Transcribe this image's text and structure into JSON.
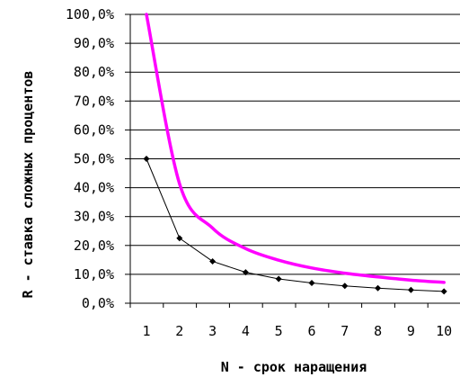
{
  "chart_data": {
    "type": "line",
    "title": "",
    "xlabel": "N - срок наращения",
    "ylabel": "R - ставка сложных процентов",
    "categories": [
      "1",
      "2",
      "3",
      "4",
      "5",
      "6",
      "7",
      "8",
      "9",
      "10"
    ],
    "y_ticks": [
      "0,0%",
      "10,0%",
      "20,0%",
      "30,0%",
      "40,0%",
      "50,0%",
      "60,0%",
      "70,0%",
      "80,0%",
      "90,0%",
      "100,0%"
    ],
    "ylim": [
      0,
      100
    ],
    "grid": true,
    "legend": "none",
    "series": [
      {
        "values": [
          100.0,
          41.4,
          26.0,
          18.9,
          14.9,
          12.2,
          10.4,
          9.1,
          8.0,
          7.2
        ],
        "color": "#ff00ff",
        "marker": "none"
      },
      {
        "values": [
          50.0,
          22.5,
          14.5,
          10.7,
          8.4,
          7.0,
          6.0,
          5.2,
          4.6,
          4.1
        ],
        "color": "#000000",
        "marker": "diamond"
      }
    ]
  }
}
